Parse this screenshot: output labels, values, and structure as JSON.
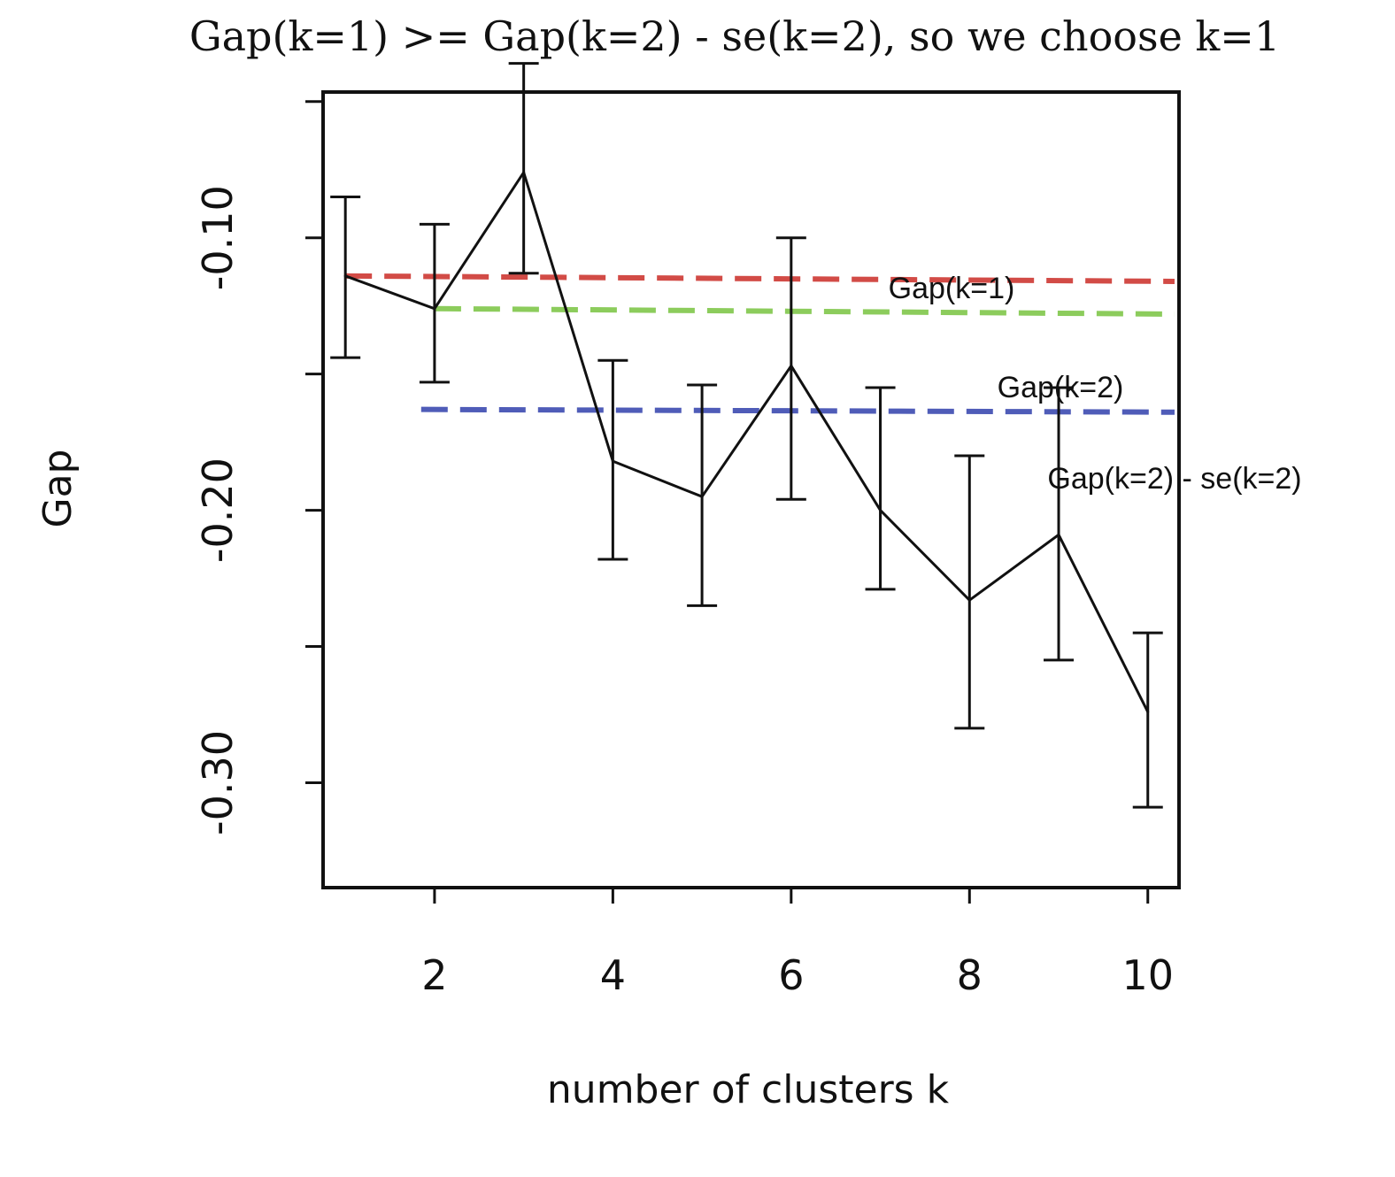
{
  "chart_data": {
    "type": "line",
    "title": "Gap(k=1) >= Gap(k=2) - se(k=2), so we choose k=1",
    "xlabel": "number of clusters k",
    "ylabel": "Gap",
    "xlim": [
      0.75,
      10.35
    ],
    "ylim": [
      -0.3385,
      -0.0465
    ],
    "xticks": [
      2,
      4,
      6,
      8,
      10
    ],
    "yticks": [
      -0.3,
      -0.25,
      -0.2,
      -0.15,
      -0.1,
      -0.05
    ],
    "ytick_labels": [
      "-0.30",
      "",
      "-0.20",
      "",
      "-0.10",
      ""
    ],
    "grid": false,
    "series": [
      {
        "x": [
          1,
          2,
          3,
          4,
          5,
          6,
          7,
          8,
          9,
          10
        ],
        "y": [
          -0.114,
          -0.126,
          -0.076,
          -0.182,
          -0.195,
          -0.147,
          -0.2,
          -0.233,
          -0.209,
          -0.274
        ],
        "error_low": [
          -0.144,
          -0.153,
          -0.113,
          -0.218,
          -0.235,
          -0.196,
          -0.229,
          -0.28,
          -0.255,
          -0.309
        ],
        "error_high": [
          -0.085,
          -0.095,
          -0.036,
          -0.145,
          -0.154,
          -0.1,
          -0.155,
          -0.18,
          -0.155,
          -0.245
        ],
        "color": "#111111"
      }
    ],
    "reference_lines": [
      {
        "label": "Gap(k=1)",
        "y_start": -0.114,
        "y_end": -0.116,
        "x_start": 1,
        "x_end": 10.3,
        "color": "#d24b46",
        "style": "dashed"
      },
      {
        "label": "Gap(k=2)",
        "y_start": -0.126,
        "y_end": -0.128,
        "x_start": 2,
        "x_end": 10.3,
        "color": "#8ccc5c",
        "style": "dashed"
      },
      {
        "label": "Gap(k=2) - se(k=2)",
        "y_start": -0.163,
        "y_end": -0.164,
        "x_start": 1.85,
        "x_end": 10.3,
        "color": "#4f5cb8",
        "style": "dashed"
      }
    ]
  }
}
